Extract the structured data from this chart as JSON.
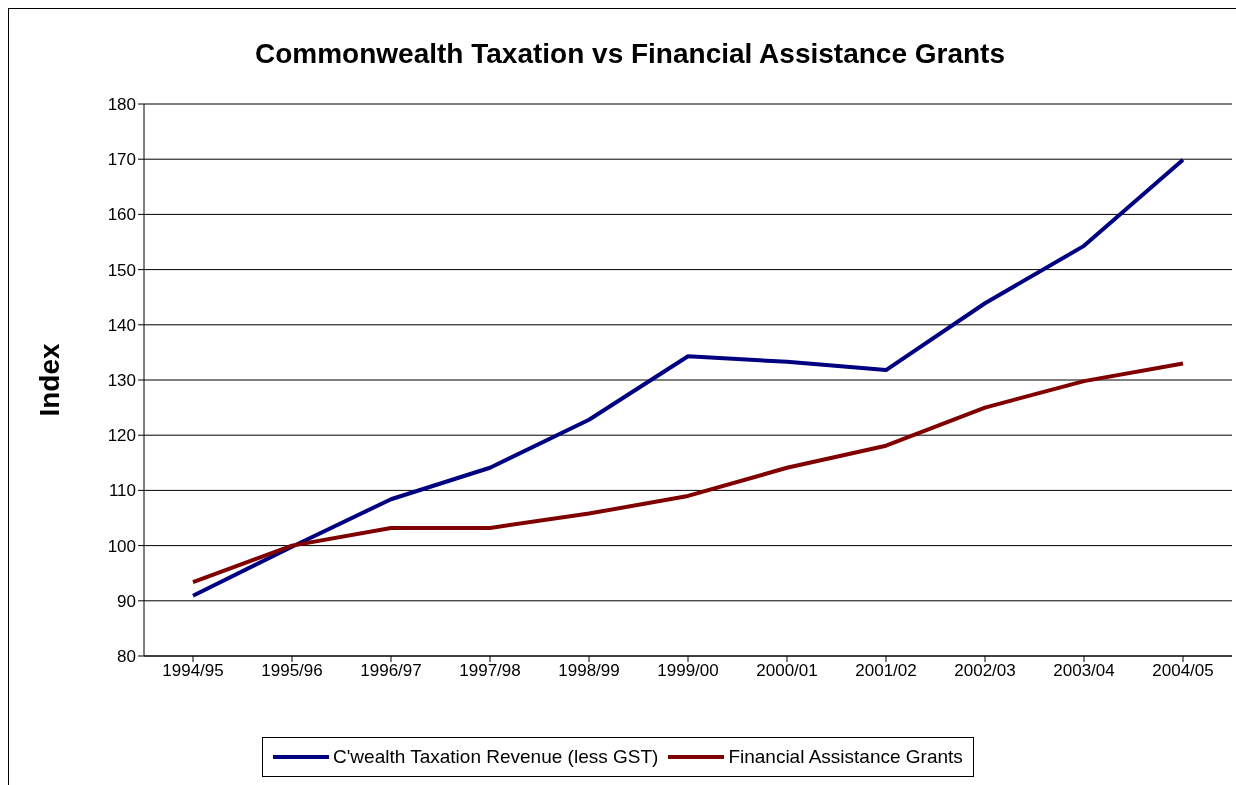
{
  "chart_data": {
    "type": "line",
    "title": "Commonwealth Taxation vs Financial Assistance Grants",
    "ylabel": "Index",
    "categories": [
      "1994/95",
      "1995/96",
      "1996/97",
      "1997/98",
      "1998/99",
      "1999/00",
      "2000/01",
      "2001/02",
      "2002/03",
      "2003/04",
      "2004/05"
    ],
    "series": [
      {
        "name": "C'wealth Taxation Revenue (less GST)",
        "color": "#000080",
        "values": [
          90.9,
          99.8,
          108.4,
          114.1,
          122.8,
          134.3,
          133.3,
          131.8,
          143.9,
          154.3,
          169.9
        ]
      },
      {
        "name": "Financial Assistance Grants",
        "color": "#800000",
        "values": [
          93.4,
          100,
          103.2,
          103.2,
          105.8,
          109,
          114.1,
          118.1,
          125,
          129.8,
          133
        ]
      }
    ],
    "ylim": [
      80,
      180
    ],
    "yticks": [
      80,
      90,
      100,
      110,
      120,
      130,
      140,
      150,
      160,
      170,
      180
    ],
    "grid": "y",
    "legend": "bottom",
    "marker": "none",
    "line_style": "solid"
  }
}
